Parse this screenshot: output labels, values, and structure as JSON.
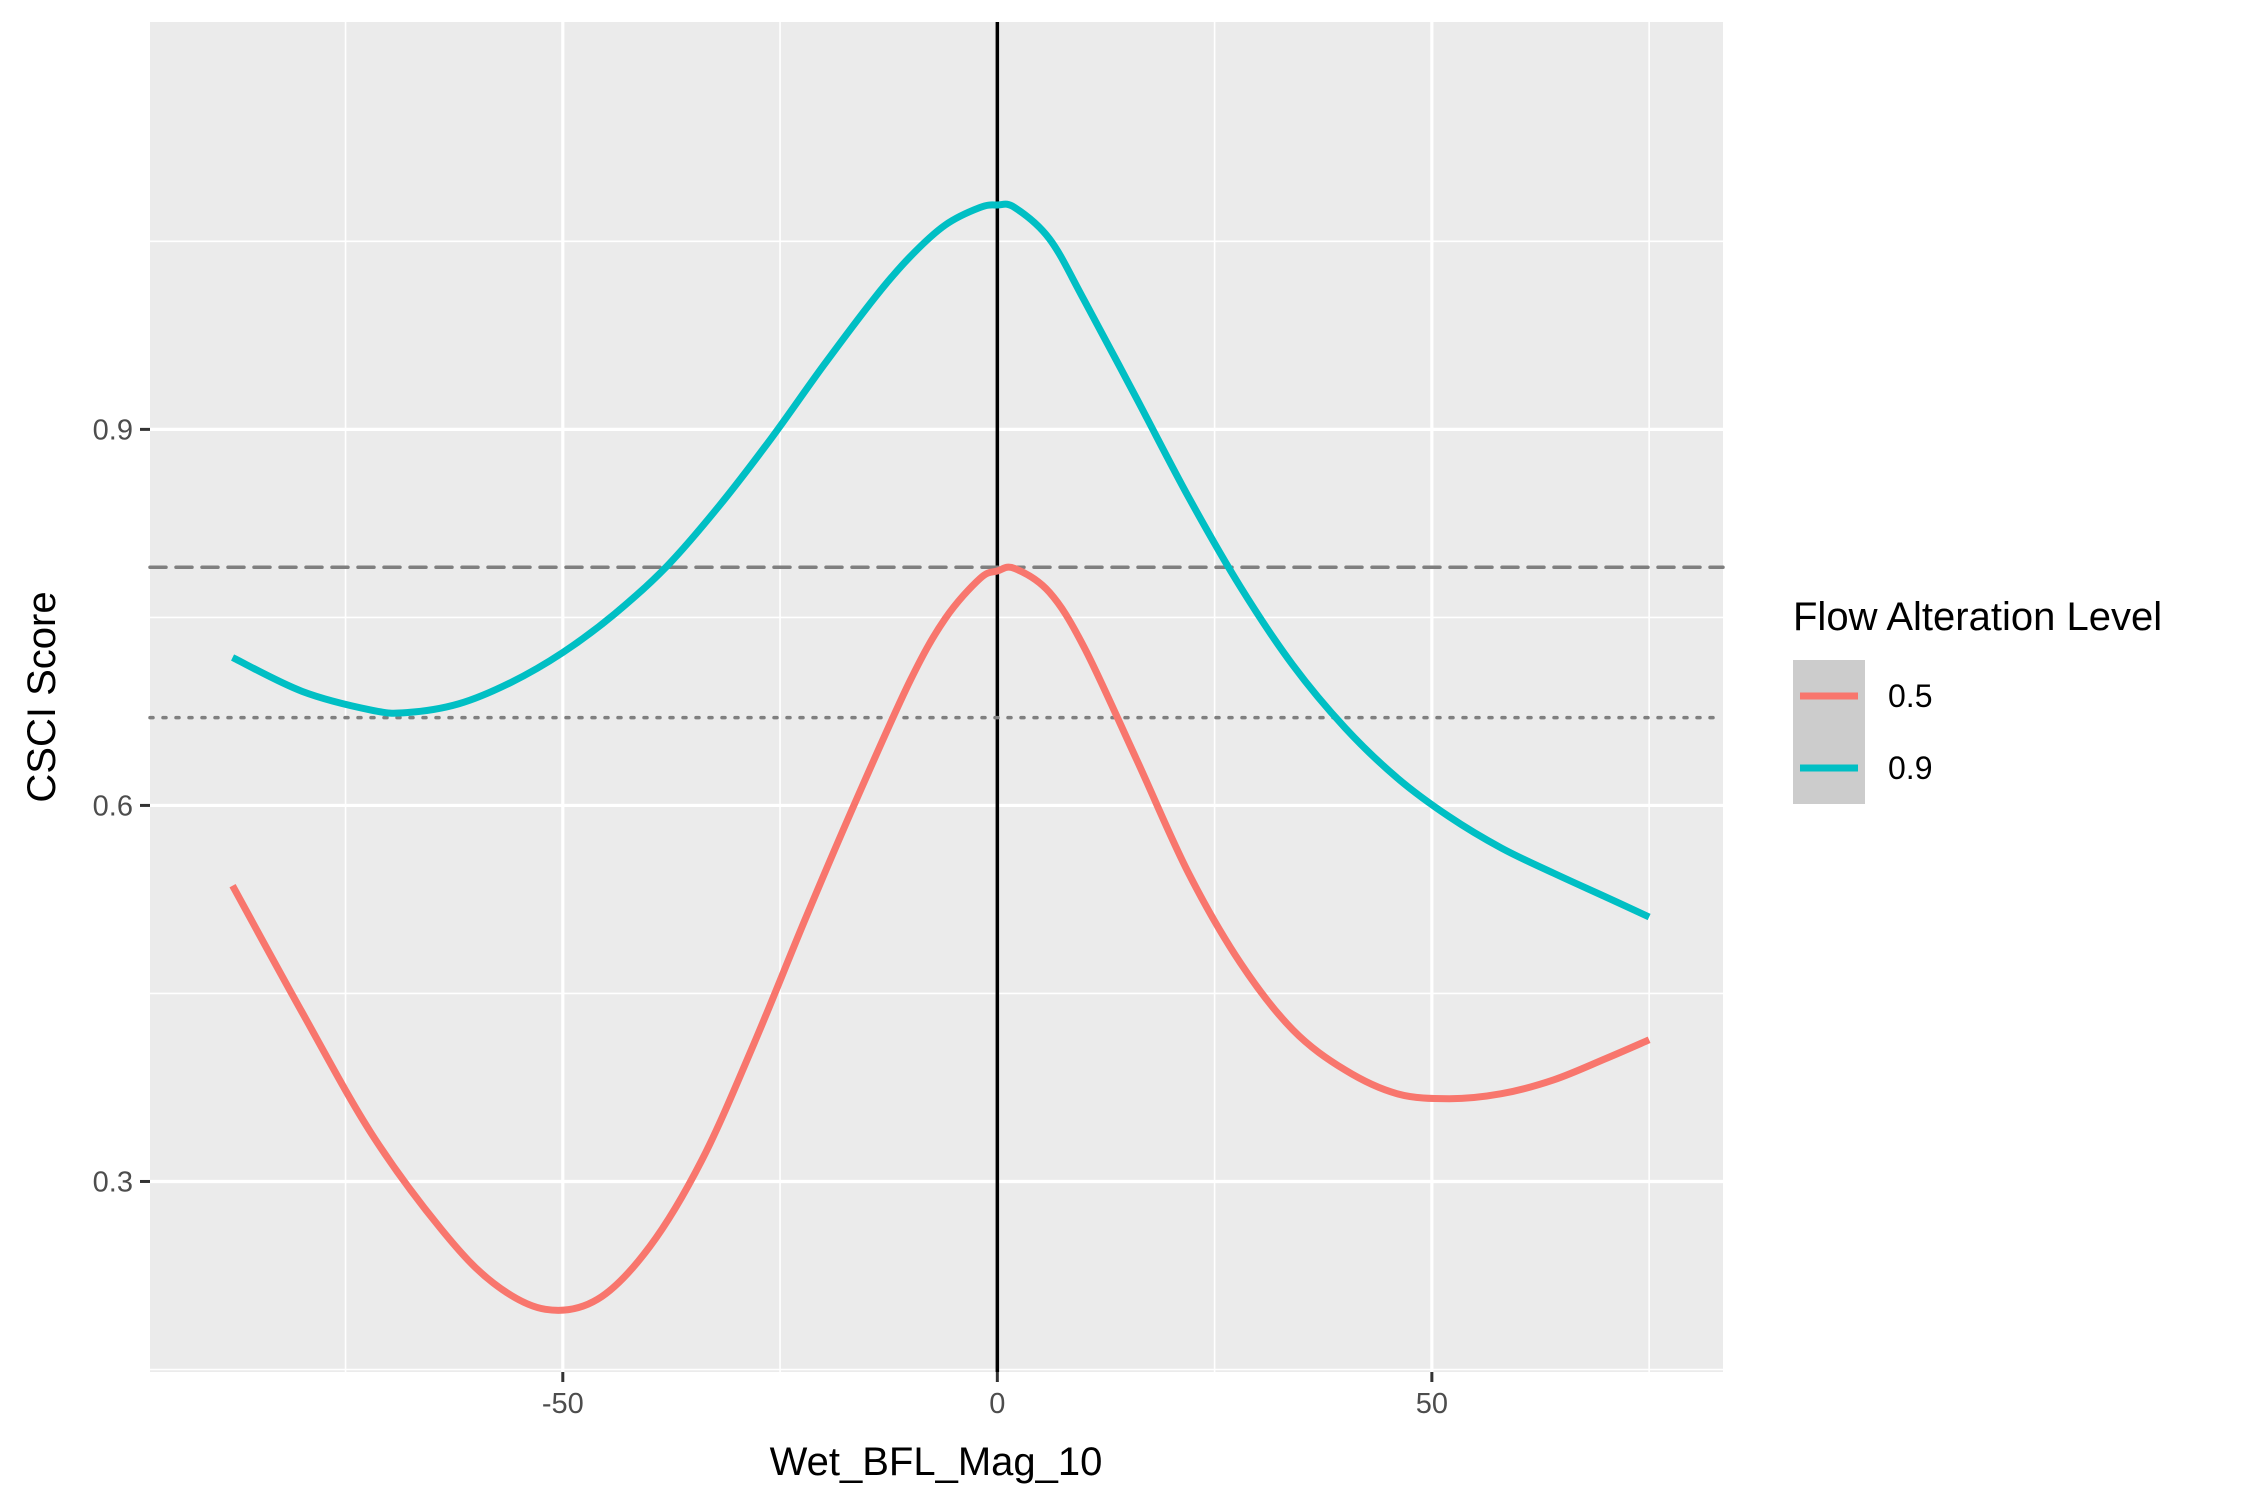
{
  "chart_data": {
    "type": "line",
    "xlabel": "Wet_BFL_Mag_10",
    "ylabel": "CSCI Score",
    "xlim": [
      -97.5,
      83.5
    ],
    "ylim": [
      0.148,
      1.225
    ],
    "x_ticks": [
      -50,
      0,
      50
    ],
    "x_tick_labels": [
      "-50",
      "0",
      "50"
    ],
    "y_ticks": [
      0.3,
      0.6,
      0.9
    ],
    "y_tick_labels": [
      "0.3",
      "0.6",
      "0.9"
    ],
    "grid": true,
    "legend": {
      "title": "Flow Alteration Level",
      "position": "right"
    },
    "reference_lines": [
      {
        "orientation": "vertical",
        "x": 0,
        "style": "solid",
        "color": "#000000"
      },
      {
        "orientation": "horizontal",
        "y": 0.79,
        "style": "dashed",
        "color": "#7f7f7f"
      },
      {
        "orientation": "horizontal",
        "y": 0.67,
        "style": "dotted",
        "color": "#7f7f7f"
      }
    ],
    "series": [
      {
        "name": "0.5",
        "color": "#F8766D",
        "x": [
          -88,
          -80,
          -72,
          -64,
          -58,
          -52,
          -46,
          -40,
          -34,
          -28,
          -22,
          -16,
          -10,
          -6,
          -2,
          0,
          2,
          6,
          10,
          16,
          22,
          28,
          34,
          40,
          46,
          52,
          58,
          64,
          70,
          75
        ],
        "y": [
          0.536,
          0.435,
          0.338,
          0.262,
          0.219,
          0.198,
          0.206,
          0.248,
          0.317,
          0.41,
          0.511,
          0.608,
          0.7,
          0.749,
          0.781,
          0.787,
          0.789,
          0.77,
          0.726,
          0.637,
          0.546,
          0.474,
          0.421,
          0.389,
          0.37,
          0.366,
          0.37,
          0.381,
          0.398,
          0.413
        ]
      },
      {
        "name": "0.9",
        "color": "#00BFC4",
        "x": [
          -88,
          -80,
          -72,
          -68,
          -62,
          -56,
          -50,
          -44,
          -38,
          -32,
          -26,
          -20,
          -14,
          -10,
          -6,
          -2,
          0,
          2,
          6,
          10,
          16,
          22,
          28,
          34,
          40,
          46,
          52,
          58,
          64,
          70,
          75
        ],
        "y": [
          0.718,
          0.691,
          0.676,
          0.674,
          0.681,
          0.698,
          0.722,
          0.753,
          0.791,
          0.839,
          0.893,
          0.951,
          1.006,
          1.038,
          1.063,
          1.077,
          1.079,
          1.077,
          1.052,
          1.003,
          0.925,
          0.846,
          0.774,
          0.712,
          0.662,
          0.622,
          0.591,
          0.566,
          0.546,
          0.527,
          0.511
        ]
      }
    ]
  }
}
